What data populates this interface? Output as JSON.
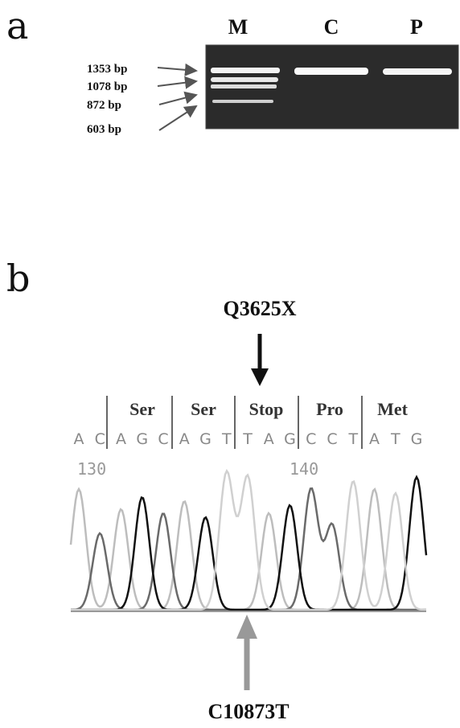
{
  "panel_a": {
    "label": "a",
    "lanes": [
      "M",
      "C",
      "P"
    ],
    "markers": [
      "1353 bp",
      "1078 bp",
      "872 bp",
      "603 bp"
    ]
  },
  "panel_b": {
    "label": "b",
    "mutation": "Q3625X",
    "amino_acids": [
      "Ser",
      "Ser",
      "Stop",
      "Pro",
      "Met"
    ],
    "bases": [
      "A",
      "C",
      "A",
      "G",
      "C",
      "A",
      "G",
      "T",
      "T",
      "A",
      "G",
      "C",
      "C",
      "T",
      "A",
      "T",
      "G"
    ],
    "positions": [
      "130",
      "140"
    ],
    "substitution": "C10873T"
  }
}
